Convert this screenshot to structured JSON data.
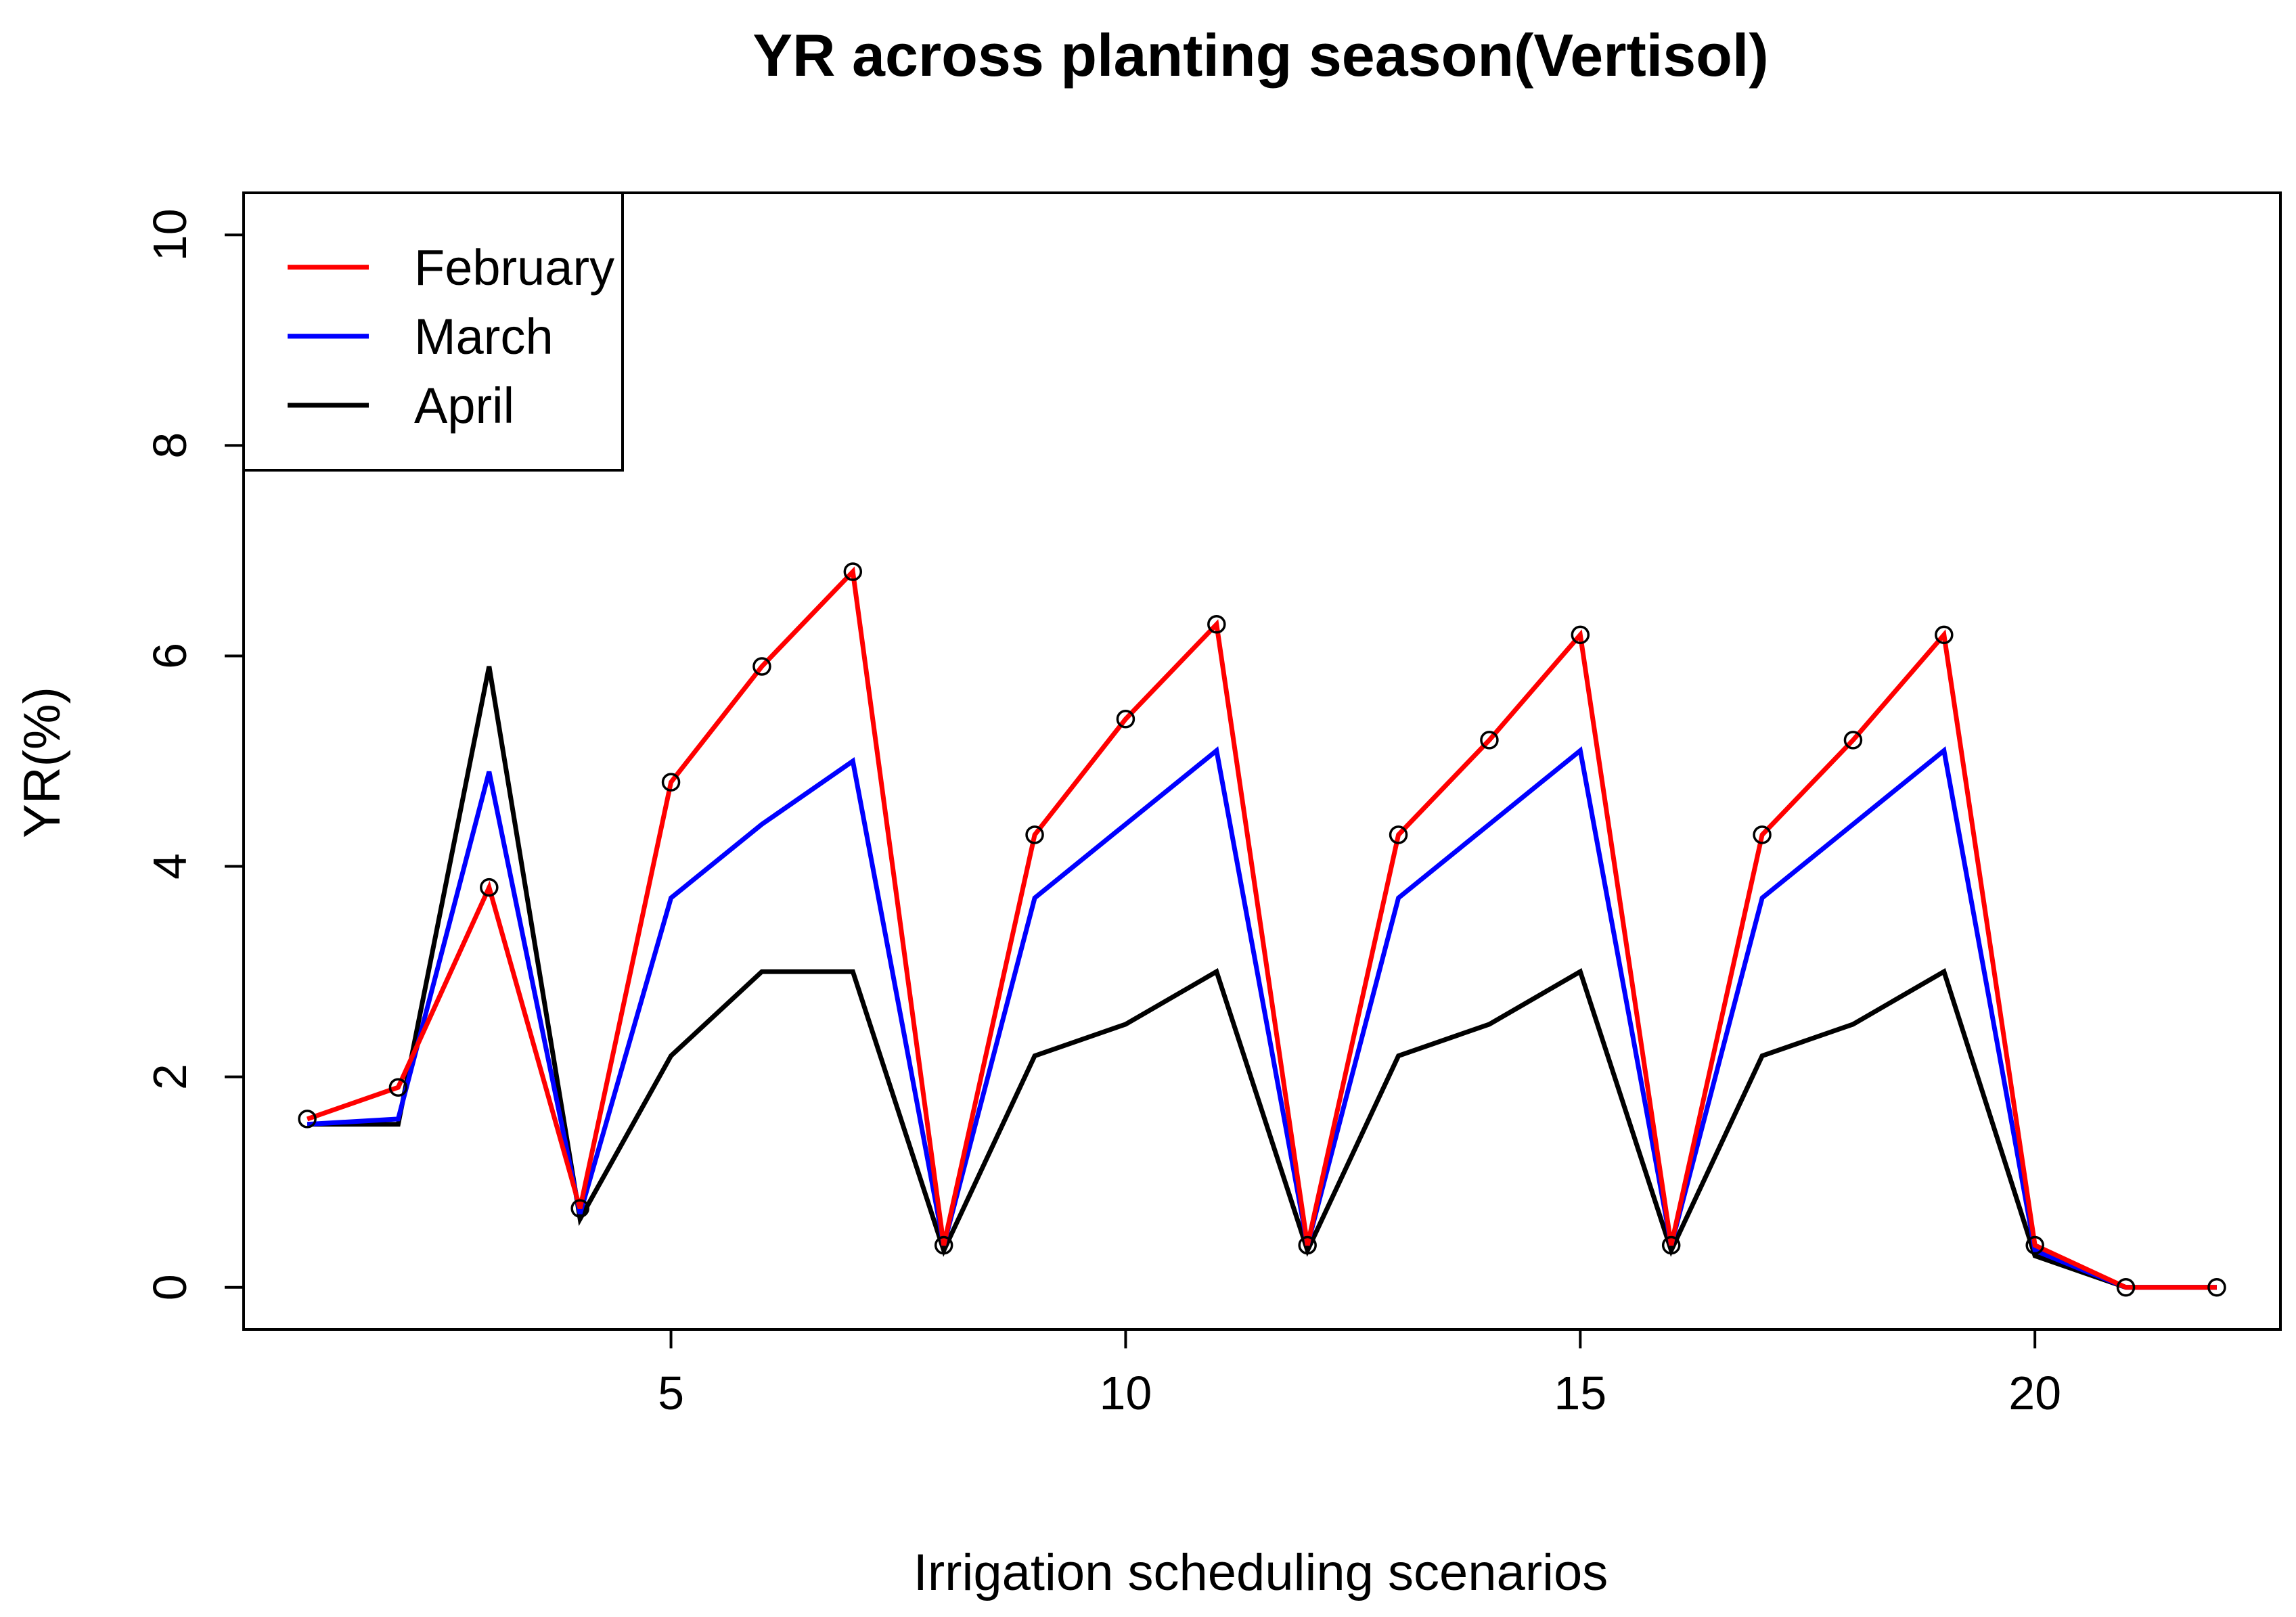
{
  "chart_data": {
    "type": "line",
    "title": "YR across planting season(Vertisol)",
    "xlabel": "Irrigation scheduling scenarios",
    "ylabel": "YR(%)",
    "xlim": [
      0.3,
      22.7
    ],
    "ylim": [
      -0.4,
      10.4
    ],
    "xticks": [
      5,
      10,
      15,
      20
    ],
    "yticks": [
      0,
      2,
      4,
      6,
      8,
      10
    ],
    "x": [
      1,
      2,
      3,
      4,
      5,
      6,
      7,
      8,
      9,
      10,
      11,
      12,
      13,
      14,
      15,
      16,
      17,
      18,
      19,
      20,
      21,
      22
    ],
    "series": [
      {
        "name": "February",
        "color": "#ff0000",
        "markers": true,
        "values": [
          1.6,
          1.9,
          3.8,
          0.75,
          4.8,
          5.9,
          6.8,
          0.4,
          4.3,
          5.4,
          6.3,
          0.4,
          4.3,
          5.2,
          6.2,
          0.4,
          4.3,
          5.2,
          6.2,
          0.4,
          0.0,
          0.0
        ]
      },
      {
        "name": "March",
        "color": "#0000ff",
        "markers": false,
        "values": [
          1.55,
          1.6,
          4.9,
          0.7,
          3.7,
          4.4,
          5.0,
          0.4,
          3.7,
          4.4,
          5.1,
          0.4,
          3.7,
          4.4,
          5.1,
          0.4,
          3.7,
          4.4,
          5.1,
          0.35,
          0.0,
          0.0
        ]
      },
      {
        "name": "April",
        "color": "#000000",
        "markers": false,
        "values": [
          1.55,
          1.55,
          5.9,
          0.65,
          2.2,
          3.0,
          3.0,
          0.35,
          2.2,
          2.5,
          3.0,
          0.35,
          2.2,
          2.5,
          3.0,
          0.35,
          2.2,
          2.5,
          3.0,
          0.3,
          0.0,
          0.0
        ]
      }
    ],
    "legend_position": "top-left"
  }
}
